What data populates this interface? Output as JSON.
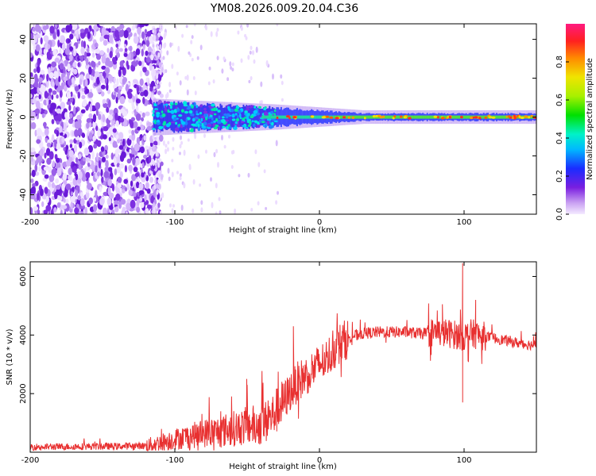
{
  "figure": {
    "title": "YM08.2026.009.20.04.C36"
  },
  "chart_data": [
    {
      "type": "heatmap",
      "name": "spectrogram",
      "xlabel": "Height of straight line (km)",
      "ylabel": "Frequency (Hz)",
      "xlim": [
        -200,
        150
      ],
      "ylim": [
        -50,
        48
      ],
      "xticks": [
        -200,
        -100,
        0,
        100
      ],
      "xtick_labels": [
        "-200",
        "-100",
        "0",
        "100"
      ],
      "yticks": [
        -40,
        -20,
        0,
        20,
        40
      ],
      "ytick_labels": [
        "-40",
        "-20",
        "0",
        "20",
        "40"
      ],
      "noise_region_end_km": -115,
      "signal_band": {
        "start_km": -115,
        "end_km": 150,
        "center_hz": 0,
        "halfwidth_hz_start": 8,
        "halfwidth_hz_end": 2
      },
      "colorbar": {
        "label": "Normalized spectral amplitude",
        "range": [
          0,
          1
        ],
        "ticks": [
          0.0,
          0.2,
          0.4,
          0.6,
          0.8
        ],
        "tick_labels": [
          "0.0",
          "0.2",
          "0.4",
          "0.6",
          "0.8"
        ]
      }
    },
    {
      "type": "line",
      "name": "snr",
      "xlabel": "Height of straight line (km)",
      "ylabel": "SNR (10 * v/v)",
      "xlim": [
        -200,
        150
      ],
      "ylim": [
        0,
        6500
      ],
      "xticks": [
        -200,
        -100,
        0,
        100
      ],
      "xtick_labels": [
        "-200",
        "-100",
        "0",
        "100"
      ],
      "yticks": [
        2000,
        4000,
        6000
      ],
      "ytick_labels": [
        "2000",
        "4000",
        "6000"
      ],
      "color": "#e83030",
      "series": [
        {
          "name": "SNR",
          "x": [
            -200,
            -180,
            -160,
            -140,
            -120,
            -110,
            -100,
            -90,
            -80,
            -70,
            -60,
            -50,
            -40,
            -35,
            -30,
            -25,
            -20,
            -15,
            -10,
            -5,
            0,
            5,
            10,
            15,
            20,
            25,
            30,
            40,
            50,
            60,
            70,
            80,
            90,
            95,
            100,
            105,
            110,
            120,
            130,
            140,
            150
          ],
          "y": [
            180,
            190,
            200,
            200,
            220,
            320,
            450,
            550,
            650,
            700,
            800,
            900,
            950,
            1100,
            1400,
            1700,
            2100,
            2400,
            2600,
            2800,
            3000,
            3200,
            3500,
            3750,
            3900,
            4000,
            4050,
            4100,
            4100,
            4100,
            4050,
            4100,
            4050,
            4000,
            3950,
            4050,
            4000,
            3900,
            3800,
            3700,
            3650
          ]
        }
      ],
      "spikes": [
        {
          "x": -18,
          "y": 4300
        },
        {
          "x": -50,
          "y": 2300
        },
        {
          "x": 99,
          "y": 6450
        },
        {
          "x": 99,
          "y": 1700
        },
        {
          "x": 85,
          "y": 5050
        },
        {
          "x": 108,
          "y": 5200
        }
      ]
    }
  ]
}
